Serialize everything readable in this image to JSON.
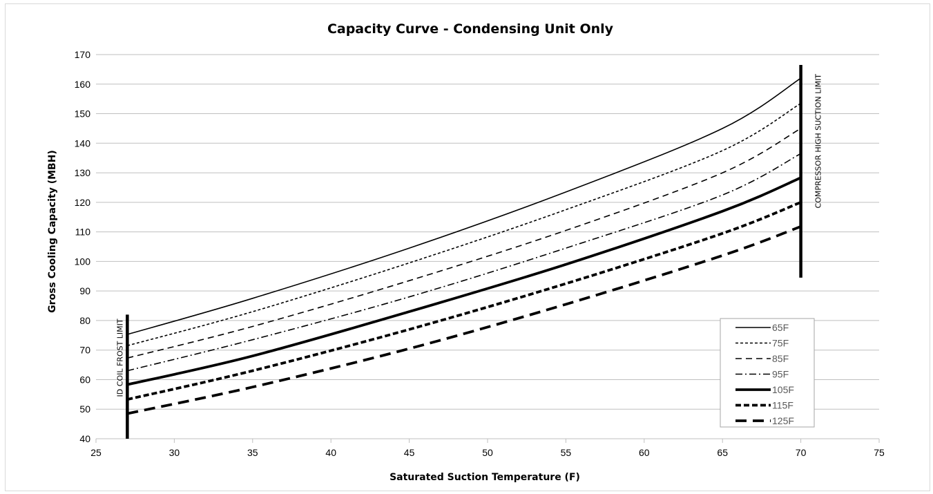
{
  "chart_data": {
    "type": "line",
    "title": "Capacity Curve - Condensing Unit Only",
    "xlabel": "Saturated Suction Temperature (F)",
    "ylabel": "Gross Cooling Capacity (MBH)",
    "xlim": [
      25,
      75
    ],
    "ylim": [
      40,
      170
    ],
    "xticks": [
      "25",
      "30",
      "35",
      "40",
      "45",
      "50",
      "55",
      "60",
      "65",
      "70",
      "75"
    ],
    "yticks": [
      "40",
      "50",
      "60",
      "70",
      "80",
      "90",
      "100",
      "110",
      "120",
      "130",
      "140",
      "150",
      "160",
      "170"
    ],
    "grid": "horizontal",
    "legend_position": "lower-right",
    "series": [
      {
        "name": "65F",
        "dash": "solid",
        "weight": "thin",
        "x": [
          27,
          35,
          45,
          55,
          65,
          70
        ],
        "y": [
          75.3,
          87.5,
          104.5,
          123.5,
          145.0,
          162.0
        ]
      },
      {
        "name": "75F",
        "dash": "short-dash",
        "weight": "thin",
        "x": [
          27,
          35,
          45,
          55,
          65,
          70
        ],
        "y": [
          71.5,
          83.0,
          99.5,
          117.5,
          137.5,
          153.5
        ]
      },
      {
        "name": "85F",
        "dash": "dash",
        "weight": "thin",
        "x": [
          27,
          35,
          45,
          55,
          65,
          70
        ],
        "y": [
          67.3,
          78.0,
          93.5,
          110.5,
          130.0,
          145.0
        ]
      },
      {
        "name": "95F",
        "dash": "dash-dot",
        "weight": "thin",
        "x": [
          27,
          35,
          45,
          55,
          65,
          70
        ],
        "y": [
          63.0,
          73.5,
          88.0,
          104.5,
          122.5,
          136.5
        ]
      },
      {
        "name": "105F",
        "dash": "solid",
        "weight": "thick",
        "x": [
          27,
          35,
          45,
          55,
          65,
          70
        ],
        "y": [
          58.3,
          68.0,
          83.0,
          99.0,
          117.0,
          128.3
        ]
      },
      {
        "name": "115F",
        "dash": "short-dash",
        "weight": "thick",
        "x": [
          27,
          35,
          45,
          55,
          65,
          70
        ],
        "y": [
          53.3,
          63.0,
          77.0,
          92.5,
          109.5,
          120.0
        ]
      },
      {
        "name": "125F",
        "dash": "dash",
        "weight": "thick",
        "x": [
          27,
          35,
          45,
          55,
          65,
          70
        ],
        "y": [
          48.5,
          57.5,
          70.5,
          85.5,
          102.0,
          111.8
        ]
      }
    ],
    "annotations": [
      {
        "text": "ID COIL FROST LIMIT",
        "x": 27,
        "y_range": [
          40,
          82
        ]
      },
      {
        "text": "COMPRESSOR HIGH SUCTION LIMIT",
        "x": 70,
        "y_range": [
          94.5,
          166.5
        ]
      }
    ]
  }
}
